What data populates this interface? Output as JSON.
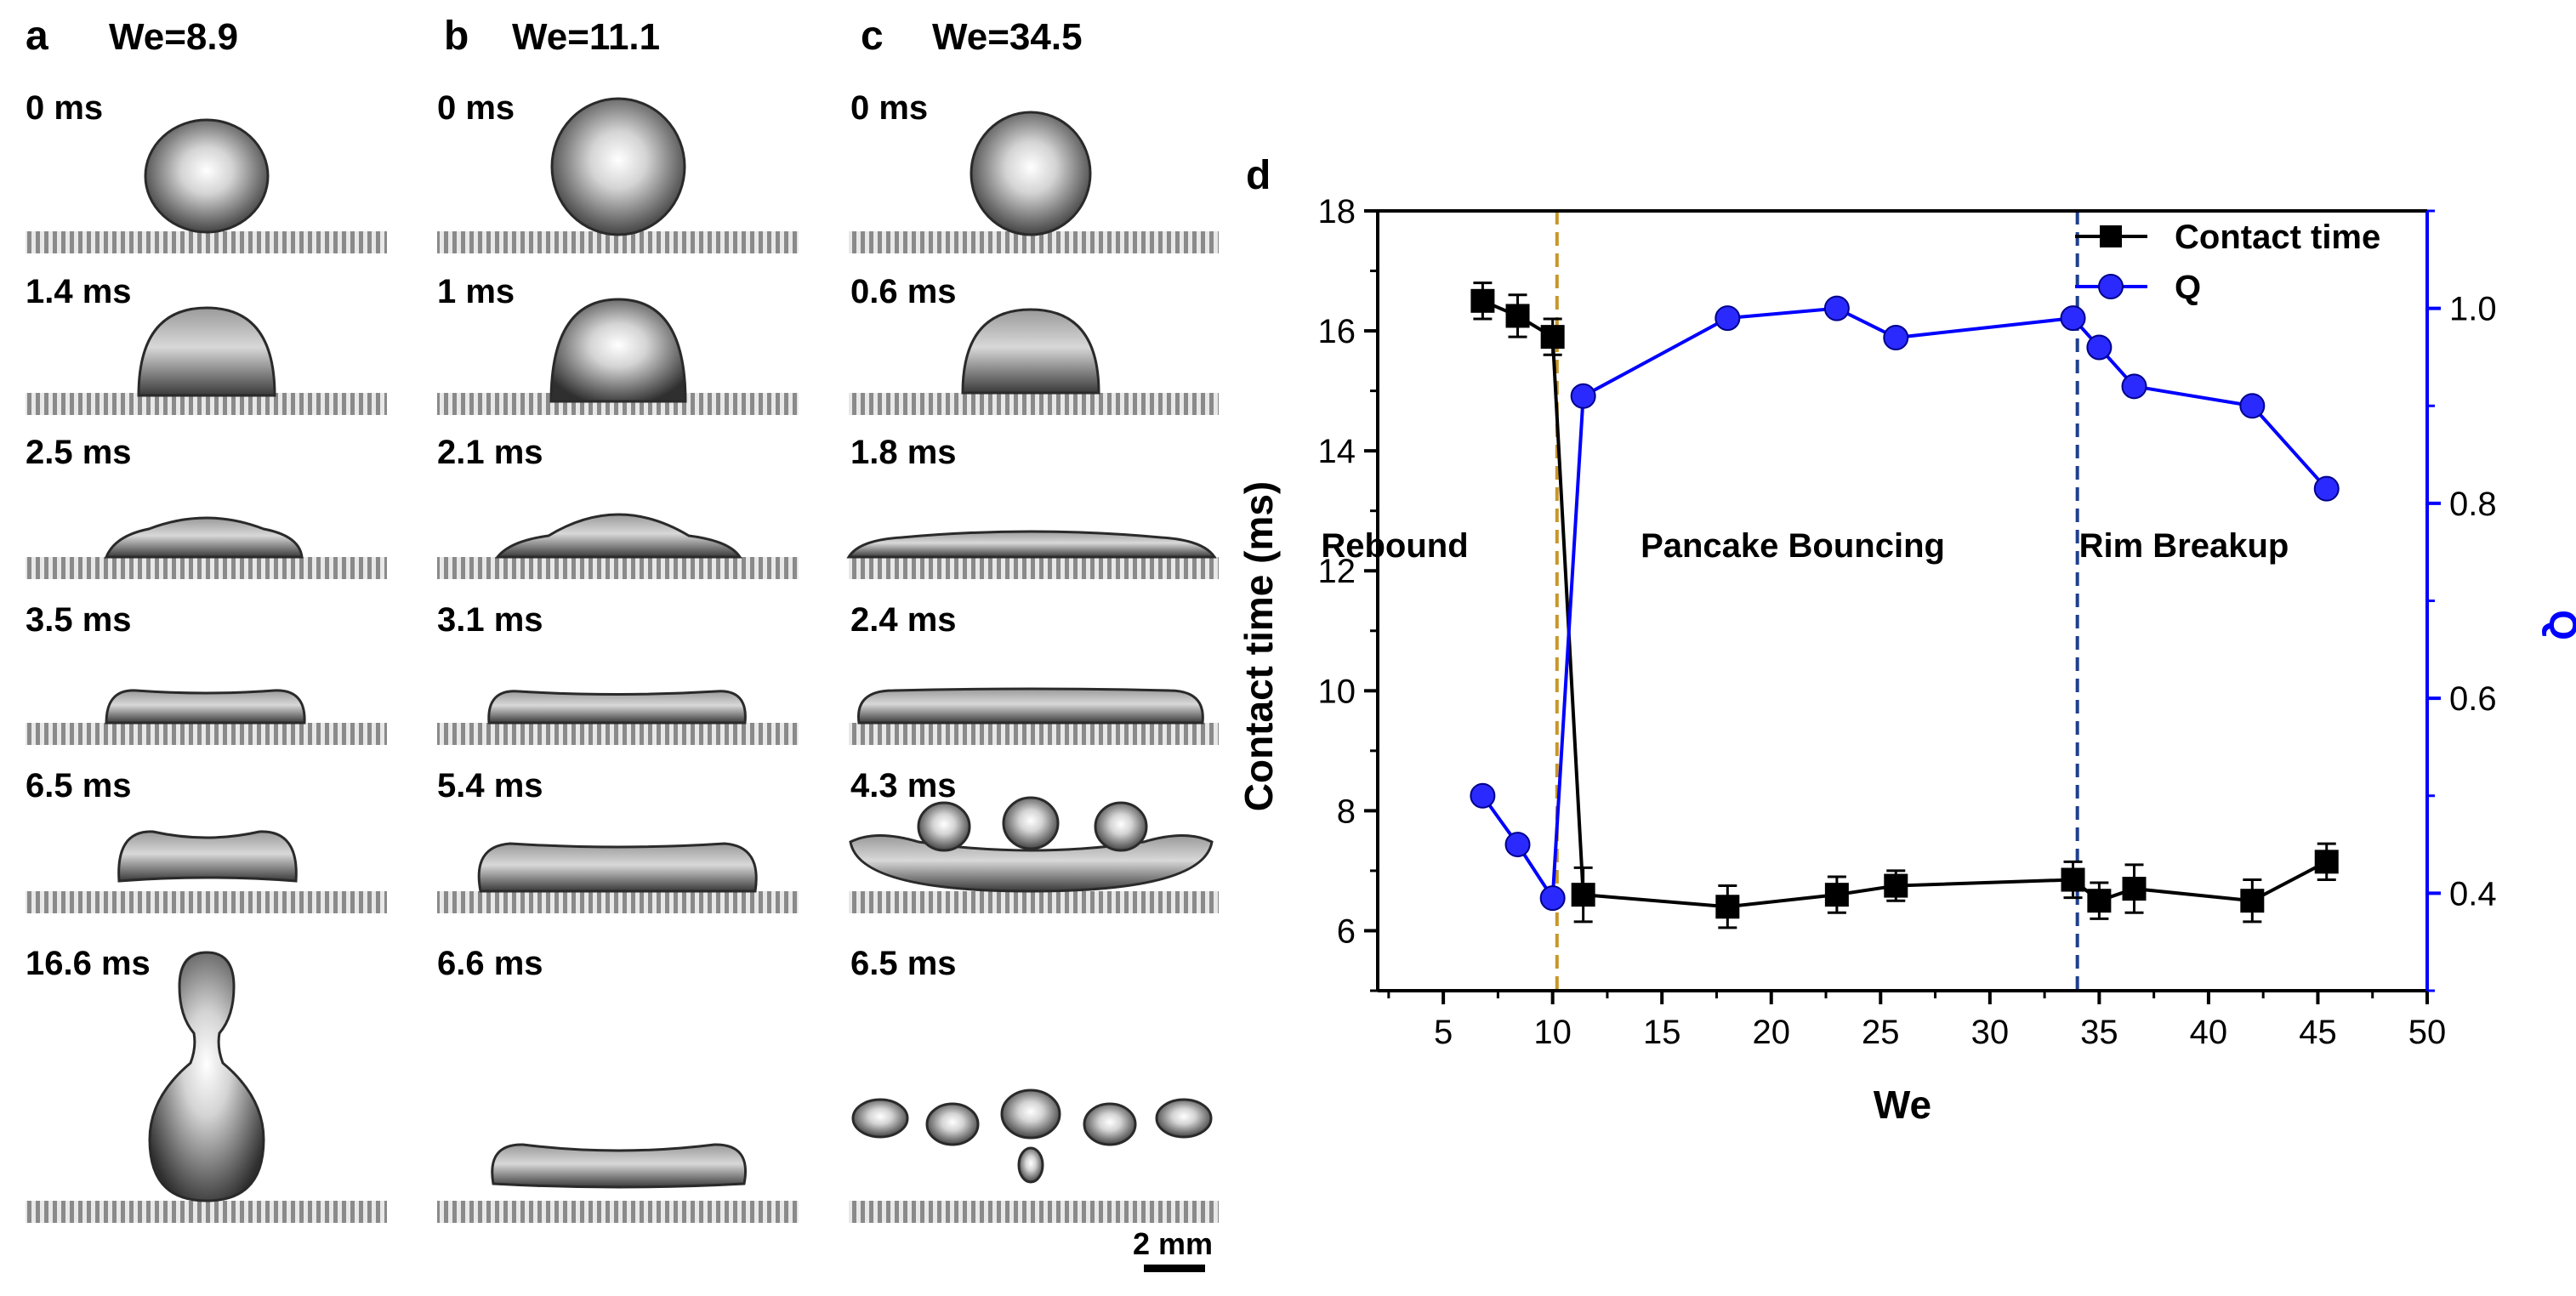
{
  "panels": {
    "a": {
      "letter": "a",
      "we": "We=8.9",
      "times": [
        "0 ms",
        "1.4 ms",
        "2.5 ms",
        "3.5 ms",
        "6.5 ms",
        "16.6 ms"
      ]
    },
    "b": {
      "letter": "b",
      "we": "We=11.1",
      "times": [
        "0 ms",
        "1 ms",
        "2.1 ms",
        "3.1 ms",
        "5.4 ms",
        "6.6 ms"
      ]
    },
    "c": {
      "letter": "c",
      "we": "We=34.5",
      "times": [
        "0 ms",
        "0.6 ms",
        "1.8 ms",
        "2.4 ms",
        "4.3 ms",
        "6.5 ms"
      ]
    }
  },
  "scale_bar": "2 mm",
  "chart_data": {
    "type": "line",
    "panel_label": "d",
    "xlabel": "We",
    "ylabel_left": "Contact time (ms)",
    "ylabel_right": "Q",
    "xlim": [
      2,
      50
    ],
    "ylim_left": [
      5,
      18
    ],
    "ylim_right": [
      0.3,
      1.1
    ],
    "x_ticks": [
      5,
      10,
      15,
      20,
      25,
      30,
      35,
      40,
      45,
      50
    ],
    "y_ticks_left": [
      6,
      8,
      10,
      12,
      14,
      16,
      18
    ],
    "y_ticks_right": [
      0.4,
      0.6,
      0.8,
      1.0
    ],
    "regions": [
      "Rebound",
      "Pancake Bouncing",
      "Rim Breakup"
    ],
    "dividers": [
      {
        "x": 10.2,
        "color": "#c8962a"
      },
      {
        "x": 34.0,
        "color": "#1f3f8f"
      }
    ],
    "series": [
      {
        "name": "Contact time",
        "axis": "left",
        "color": "#000000",
        "marker": "square",
        "x": [
          6.8,
          8.4,
          10,
          11.4,
          18,
          23,
          25.7,
          33.8,
          35,
          36.6,
          42,
          45.4
        ],
        "y": [
          16.5,
          16.25,
          15.9,
          6.6,
          6.4,
          6.6,
          6.75,
          6.85,
          6.5,
          6.7,
          6.5,
          7.15
        ],
        "err": [
          0.3,
          0.35,
          0.3,
          0.45,
          0.35,
          0.3,
          0.25,
          0.3,
          0.3,
          0.4,
          0.35,
          0.3
        ]
      },
      {
        "name": "Q",
        "axis": "right",
        "color": "#0000ff",
        "marker": "circle",
        "x": [
          6.8,
          8.4,
          10,
          11.4,
          18,
          23,
          25.7,
          33.8,
          35,
          36.6,
          42,
          45.4
        ],
        "y": [
          0.5,
          0.45,
          0.395,
          0.91,
          0.99,
          1.0,
          0.97,
          0.99,
          0.96,
          0.92,
          0.9,
          0.815
        ]
      }
    ]
  }
}
